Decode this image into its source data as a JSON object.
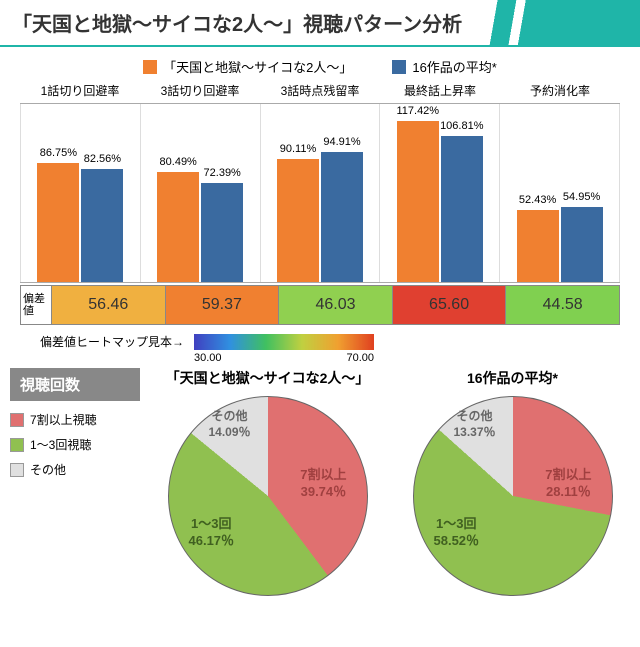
{
  "title": "「天国と地獄〜サイコな2人〜」視聴パターン分析",
  "legend": {
    "series1": {
      "label": "「天国と地獄〜サイコな2人〜」",
      "color": "#f08030"
    },
    "series2": {
      "label": "16作品の平均*",
      "color": "#3a6aa0"
    }
  },
  "barChart": {
    "maxValue": 130,
    "categories": [
      {
        "name": "1話切り回避率",
        "v1": 86.75,
        "v2": 82.56
      },
      {
        "name": "3話切り回避率",
        "v1": 80.49,
        "v2": 72.39
      },
      {
        "name": "3話時点残留率",
        "v1": 90.11,
        "v2": 94.91
      },
      {
        "name": "最終話上昇率",
        "v1": 117.42,
        "v2": 106.81
      },
      {
        "name": "予約消化率",
        "v1": 52.43,
        "v2": 54.95
      }
    ]
  },
  "deviation": {
    "label": "偏差値",
    "cells": [
      {
        "value": "56.46",
        "color": "#f0b040"
      },
      {
        "value": "59.37",
        "color": "#f08030"
      },
      {
        "value": "46.03",
        "color": "#90d050"
      },
      {
        "value": "65.60",
        "color": "#e04030"
      },
      {
        "value": "44.58",
        "color": "#80d050"
      }
    ]
  },
  "heatmapLegend": {
    "label": "偏差値ヒートマップ見本→",
    "min": "30.00",
    "max": "70.00"
  },
  "pieSection": {
    "title": "視聴回数",
    "legend": [
      {
        "label": "7割以上視聴",
        "color": "#e07070"
      },
      {
        "label": "1〜3回視聴",
        "color": "#90c050"
      },
      {
        "label": "その他",
        "color": "#e0e0e0"
      }
    ],
    "pies": [
      {
        "title": "「天国と地獄〜サイコな2人〜」",
        "slices": {
          "over70": 39.74,
          "onethree": 46.17,
          "other": 14.09
        },
        "labels": {
          "over70": "7割以上\n39.74％",
          "onethree": "1〜3回\n46.17％",
          "other": "その他\n14.09％"
        }
      },
      {
        "title": "16作品の平均*",
        "slices": {
          "over70": 28.11,
          "onethree": 58.52,
          "other": 13.37
        },
        "labels": {
          "over70": "7割以上\n28.11％",
          "onethree": "1〜3回\n58.52％",
          "other": "その他\n13.37％"
        }
      }
    ]
  }
}
